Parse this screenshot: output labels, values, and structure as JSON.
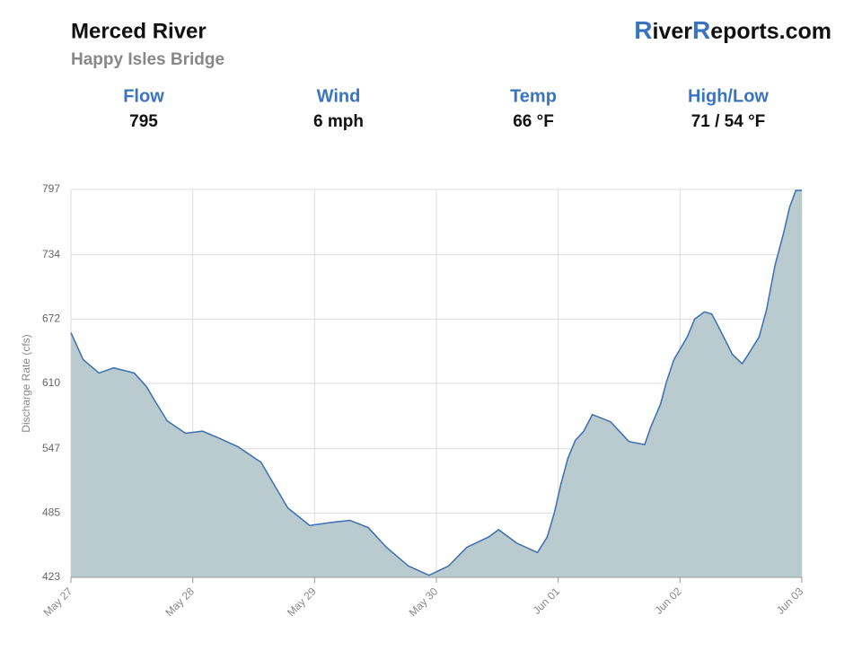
{
  "header": {
    "title": "Merced River",
    "subtitle": "Happy Isles Bridge",
    "logo": [
      "R",
      "iver",
      "R",
      "eports.com"
    ]
  },
  "stats": [
    {
      "label": "Flow",
      "value": "795"
    },
    {
      "label": "Wind",
      "value": "6 mph"
    },
    {
      "label": "Temp",
      "value": "66 °F"
    },
    {
      "label": "High/Low",
      "value": "71 / 54 °F"
    }
  ],
  "chart_data": {
    "type": "area",
    "y_label": "Discharge Rate (cfs)",
    "x": [
      0,
      0.1,
      0.23,
      0.35,
      0.52,
      0.62,
      0.69,
      0.79,
      0.94,
      1.08,
      1.22,
      1.37,
      1.56,
      1.67,
      1.78,
      1.96,
      2.14,
      2.29,
      2.44,
      2.59,
      2.77,
      2.94,
      3.1,
      3.25,
      3.43,
      3.51,
      3.66,
      3.83,
      3.91,
      3.97,
      4.02,
      4.08,
      4.14,
      4.21,
      4.28,
      4.43,
      4.58,
      4.71,
      4.76,
      4.84,
      4.89,
      4.95,
      5.06,
      5.12,
      5.2,
      5.26,
      5.31,
      5.43,
      5.51,
      5.56,
      5.65,
      5.71,
      5.78,
      5.85,
      5.9,
      5.95,
      6.0
    ],
    "series": [
      {
        "name": "Discharge",
        "color": "#3a6fb0",
        "fill": "#b9cbcf",
        "values": [
          659,
          633,
          620,
          625,
          620,
          607,
          593,
          574,
          562,
          564,
          557,
          549,
          534,
          512,
          490,
          473,
          476,
          478,
          471,
          452,
          434,
          425,
          434,
          452,
          462,
          469,
          456,
          447,
          462,
          486,
          512,
          538,
          555,
          564,
          580,
          573,
          554,
          551,
          568,
          590,
          612,
          633,
          655,
          672,
          679,
          677,
          666,
          638,
          629,
          638,
          655,
          681,
          724,
          755,
          780,
          796,
          796
        ]
      }
    ],
    "xlim": [
      0,
      6
    ],
    "xticks": [
      {
        "value": 0,
        "label": "May 27"
      },
      {
        "value": 1,
        "label": "May 28"
      },
      {
        "value": 2,
        "label": "May 29"
      },
      {
        "value": 3,
        "label": "May 30"
      },
      {
        "value": 4,
        "label": "Jun 01"
      },
      {
        "value": 5,
        "label": "Jun 02"
      },
      {
        "value": 6,
        "label": "Jun 03"
      }
    ],
    "ylim": [
      423,
      797
    ],
    "yticks": [
      423,
      485,
      547,
      610,
      672,
      734,
      797
    ],
    "grid": true
  }
}
